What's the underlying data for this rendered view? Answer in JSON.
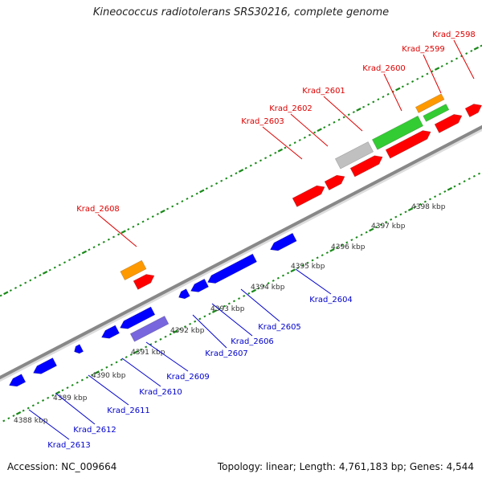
{
  "title": "Kineococcus radiotolerans SRS30216, complete genome",
  "footer": {
    "accession": "Accession: NC_009664",
    "summary": "Topology: linear; Length: 4,761,183 bp; Genes: 4,544"
  },
  "colors": {
    "forward_gene": "#ff0000",
    "reverse_gene": "#0000ff",
    "label_forward": "#dd0000",
    "label_reverse": "#0000cc",
    "rna_orange": "#ff9900",
    "rna_green": "#33cc33",
    "pseudo_grey": "#c0c0c0",
    "misc_purple": "#7766dd",
    "backbone": "#888888",
    "ticks": "#1a8a1a"
  },
  "scale": {
    "unit": "kbp",
    "labels": [
      "4388 kbp",
      "4389 kbp",
      "4390 kbp",
      "4391 kbp",
      "4392 kbp",
      "4393 kbp",
      "4394 kbp",
      "4395 kbp",
      "4396 kbp",
      "4397 kbp",
      "4398 kbp"
    ]
  },
  "forward_labels": [
    "Krad_2598",
    "Krad_2599",
    "Krad_2600",
    "Krad_2601",
    "Krad_2602",
    "Krad_2603",
    "Krad_2608"
  ],
  "reverse_labels": [
    "Krad_2604",
    "Krad_2605",
    "Krad_2606",
    "Krad_2607",
    "Krad_2609",
    "Krad_2610",
    "Krad_2611",
    "Krad_2612",
    "Krad_2613"
  ]
}
